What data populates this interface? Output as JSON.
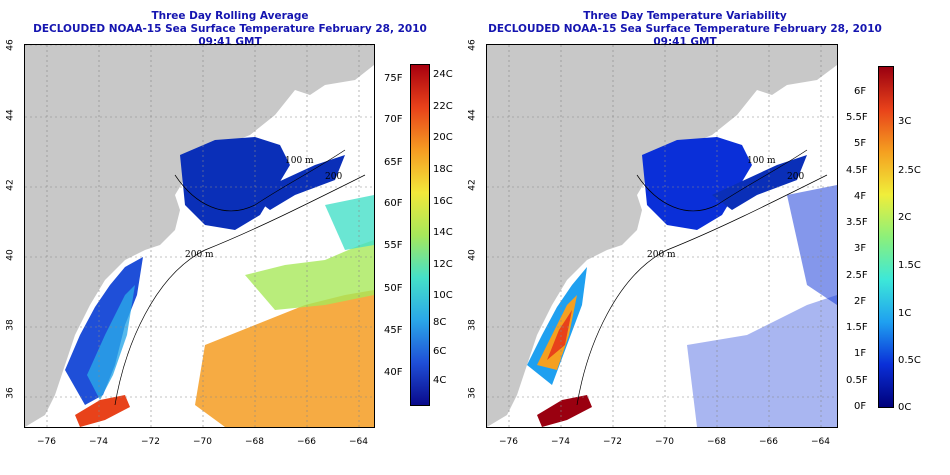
{
  "panels": [
    {
      "title_line1": "Three Day Rolling Average",
      "title_line2": "DECLOUDED NOAA-15 Sea Surface Temperature February 28, 2010 09:41 GMT",
      "contour_labels": [
        "100 m",
        "200",
        "200 m"
      ],
      "left_labels": [
        "75F",
        "70F",
        "65F",
        "60F",
        "55F",
        "50F",
        "45F",
        "40F"
      ],
      "right_labels": [
        "24C",
        "22C",
        "20C",
        "18C",
        "16C",
        "14C",
        "12C",
        "10C",
        "8C",
        "6C",
        "4C"
      ]
    },
    {
      "title_line1": "Three Day Temperature Variability",
      "title_line2": "DECLOUDED NOAA-15 Sea Surface Temperature February 28, 2010 09:41 GMT",
      "contour_labels": [
        "100 m",
        "200",
        "200 m"
      ],
      "left_labels": [
        "6F",
        "5.5F",
        "5F",
        "4.5F",
        "4F",
        "3.5F",
        "3F",
        "2.5F",
        "2F",
        "1.5F",
        "1F",
        "0.5F",
        "0F"
      ],
      "right_labels": [
        "3C",
        "2.5C",
        "2C",
        "1.5C",
        "1C",
        "0.5C",
        "0C"
      ]
    }
  ],
  "axes": {
    "lat_ticks": [
      "46",
      "44",
      "42",
      "40",
      "38",
      "36"
    ],
    "lon_ticks": [
      "−76",
      "−74",
      "−72",
      "−70",
      "−68",
      "−66",
      "−64"
    ]
  },
  "colors": {
    "title": "#1515b0",
    "land": "#c8c8c8",
    "no_data": "#ffffff"
  },
  "colorbars": {
    "average_scale": [
      "#0a0a8c",
      "#1f4fd8",
      "#2aa7e8",
      "#45e0c8",
      "#a7e85a",
      "#f2e83a",
      "#f59c22",
      "#e8421a",
      "#a8000f"
    ],
    "variability_scale": [
      "#00007a",
      "#0a2fd8",
      "#1fa0f0",
      "#3de8d8",
      "#8cf07a",
      "#f0ee3a",
      "#f5a020",
      "#e8421a",
      "#9a0010"
    ]
  }
}
